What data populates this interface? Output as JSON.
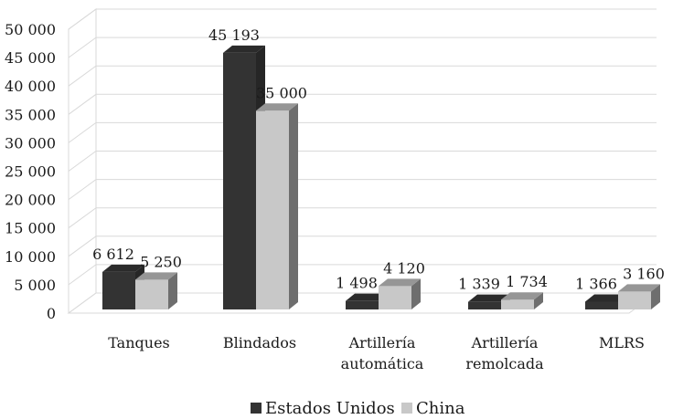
{
  "chart_data": {
    "type": "bar",
    "categories": [
      [
        "Tanques"
      ],
      [
        "Blindados"
      ],
      [
        "Artillería",
        "automática"
      ],
      [
        "Artillería",
        "remolcada"
      ],
      [
        "MLRS"
      ]
    ],
    "series": [
      {
        "name": "Estados Unidos",
        "values": [
          6612,
          45193,
          1498,
          1339,
          1366
        ],
        "labels": [
          "6 612",
          "45 193",
          "1 498",
          "1 339",
          "1 366"
        ],
        "color": "#333333"
      },
      {
        "name": "China",
        "values": [
          5250,
          35000,
          4120,
          1734,
          3160
        ],
        "labels": [
          "5 250",
          "35 000",
          "4 120",
          "1 734",
          "3 160"
        ],
        "color": "#c8c8c8"
      }
    ],
    "yticks": [
      "0",
      "5 000",
      "10 000",
      "15 000",
      "20 000",
      "25 000",
      "30 000",
      "35 000",
      "40 000",
      "45 000",
      "50 000"
    ],
    "ylim": [
      0,
      50000
    ],
    "grid": true,
    "legend_position": "bottom",
    "style": "3d-clustered-column"
  }
}
